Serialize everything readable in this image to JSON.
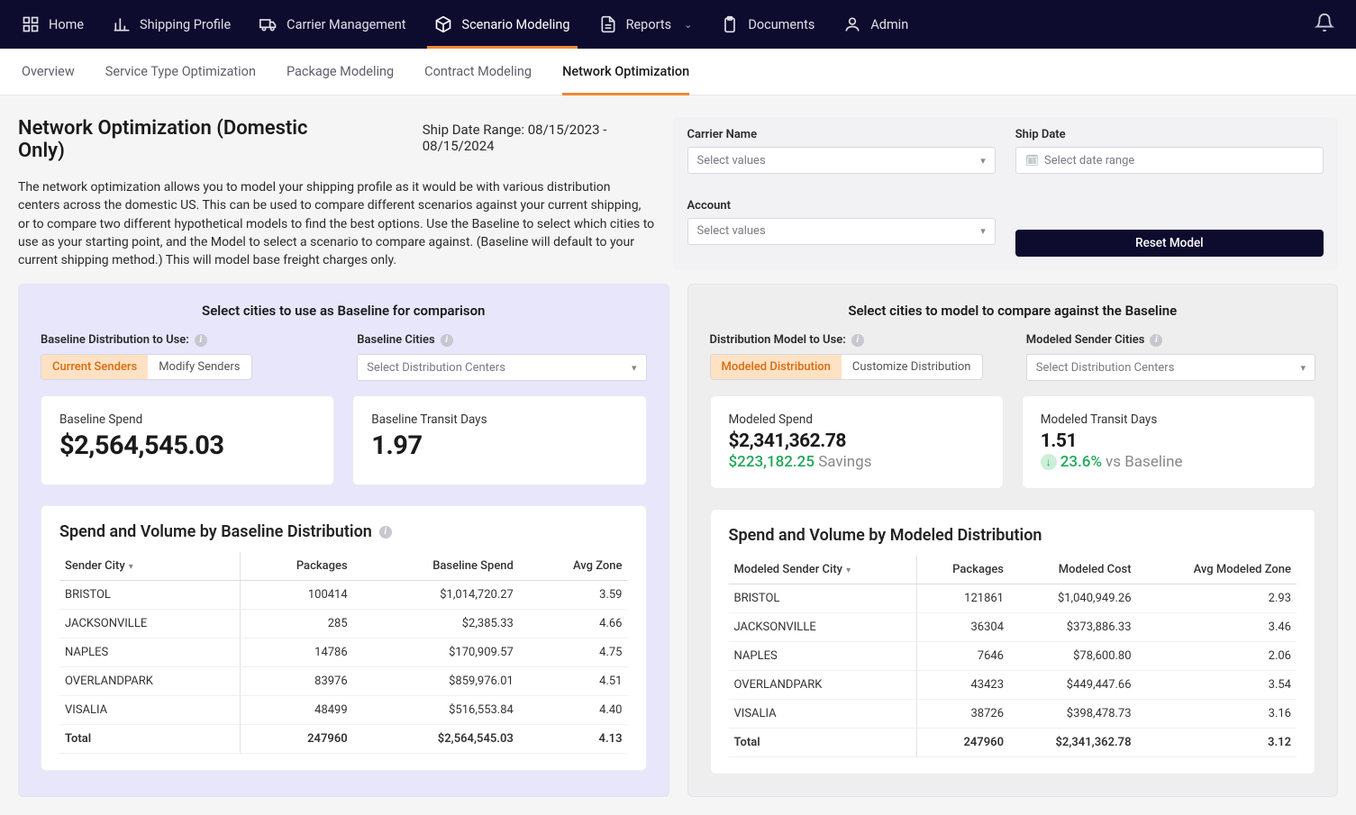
{
  "nav": {
    "items": [
      {
        "label": "Home",
        "icon": "home"
      },
      {
        "label": "Shipping Profile",
        "icon": "chart"
      },
      {
        "label": "Carrier Management",
        "icon": "truck"
      },
      {
        "label": "Scenario Modeling",
        "icon": "cube",
        "active": true
      },
      {
        "label": "Reports",
        "icon": "doc",
        "dropdown": true
      },
      {
        "label": "Documents",
        "icon": "clip"
      },
      {
        "label": "Admin",
        "icon": "user"
      }
    ]
  },
  "subtabs": {
    "items": [
      {
        "label": "Overview"
      },
      {
        "label": "Service Type Optimization"
      },
      {
        "label": "Package Modeling"
      },
      {
        "label": "Contract Modeling"
      },
      {
        "label": "Network Optimization",
        "active": true
      }
    ]
  },
  "header": {
    "title": "Network Optimization (Domestic Only)",
    "date_range_label": "Ship Date Range: 08/15/2023 - 08/15/2024",
    "description": "The network optimization allows you to model your shipping profile as it would be with various distribution centers across the domestic US. This can be used to compare different scenarios against your current shipping, or to compare two different hypothetical models to find the best options. Use the Baseline to select which cities to use as your starting point, and the Model to select a scenario to compare against. (Baseline will default to your current shipping method.) This will model base freight charges only."
  },
  "filters": {
    "carrier_label": "Carrier Name",
    "carrier_placeholder": "Select values",
    "shipdate_label": "Ship Date",
    "shipdate_placeholder": "Select date range",
    "account_label": "Account",
    "account_placeholder": "Select values",
    "reset_label": "Reset Model"
  },
  "baseline": {
    "panel_title": "Select cities to use as Baseline for comparison",
    "dist_label": "Baseline Distribution to Use:",
    "seg_opts": [
      "Current Senders",
      "Modify Senders"
    ],
    "cities_label": "Baseline Cities",
    "cities_placeholder": "Select Distribution Centers",
    "spend_label": "Baseline Spend",
    "spend_value": "$2,564,545.03",
    "transit_label": "Baseline Transit Days",
    "transit_value": "1.97",
    "table_title": "Spend and Volume by Baseline Distribution",
    "cols": [
      "Sender City",
      "Packages",
      "Baseline Spend",
      "Avg Zone"
    ],
    "rows": [
      {
        "city": "BRISTOL",
        "packages": "100414",
        "spend": "$1,014,720.27",
        "zone": "3.59"
      },
      {
        "city": "JACKSONVILLE",
        "packages": "285",
        "spend": "$2,385.33",
        "zone": "4.66"
      },
      {
        "city": "NAPLES",
        "packages": "14786",
        "spend": "$170,909.57",
        "zone": "4.75"
      },
      {
        "city": "OVERLANDPARK",
        "packages": "83976",
        "spend": "$859,976.01",
        "zone": "4.51"
      },
      {
        "city": "VISALIA",
        "packages": "48499",
        "spend": "$516,553.84",
        "zone": "4.40"
      }
    ],
    "total": {
      "city": "Total",
      "packages": "247960",
      "spend": "$2,564,545.03",
      "zone": "4.13"
    }
  },
  "model": {
    "panel_title": "Select cities to model to compare against the Baseline",
    "dist_label": "Distribution Model to Use:",
    "seg_opts": [
      "Modeled Distribution",
      "Customize Distribution"
    ],
    "cities_label": "Modeled Sender Cities",
    "cities_placeholder": "Select Distribution Centers",
    "spend_label": "Modeled Spend",
    "spend_value": "$2,341,362.78",
    "savings_value": "$223,182.25",
    "savings_suffix": "Savings",
    "transit_label": "Modeled Transit Days",
    "transit_value": "1.51",
    "vs_pct": "23.6%",
    "vs_suffix": "vs Baseline",
    "table_title": "Spend and Volume by Modeled Distribution",
    "cols": [
      "Modeled Sender City",
      "Packages",
      "Modeled Cost",
      "Avg Modeled Zone"
    ],
    "rows": [
      {
        "city": "BRISTOL",
        "packages": "121861",
        "spend": "$1,040,949.26",
        "zone": "2.93"
      },
      {
        "city": "JACKSONVILLE",
        "packages": "36304",
        "spend": "$373,886.33",
        "zone": "3.46"
      },
      {
        "city": "NAPLES",
        "packages": "7646",
        "spend": "$78,600.80",
        "zone": "2.06"
      },
      {
        "city": "OVERLANDPARK",
        "packages": "43423",
        "spend": "$449,447.66",
        "zone": "3.54"
      },
      {
        "city": "VISALIA",
        "packages": "38726",
        "spend": "$398,478.73",
        "zone": "3.16"
      }
    ],
    "total": {
      "city": "Total",
      "packages": "247960",
      "spend": "$2,341,362.78",
      "zone": "3.12"
    }
  }
}
